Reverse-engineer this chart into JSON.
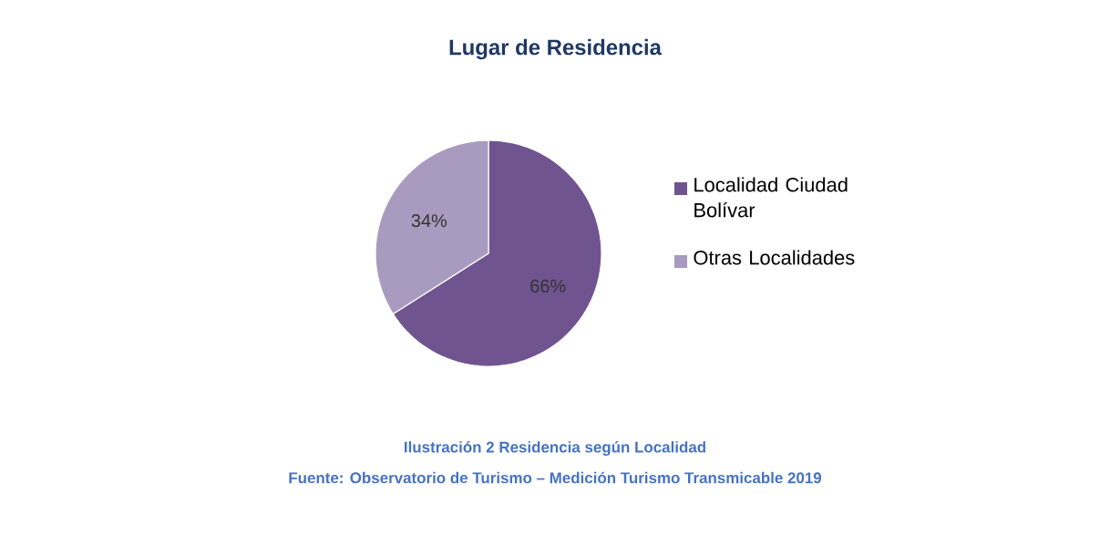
{
  "chart_data": {
    "type": "pie",
    "title": "Lugar de Residencia",
    "categories": [
      "Localidad Ciudad Bolívar",
      "Otras Localidades"
    ],
    "values": [
      66,
      34
    ],
    "colors": [
      "#6f5490",
      "#a99bbf"
    ],
    "value_labels": [
      "66%",
      "34%"
    ],
    "legend": "right",
    "annotations": [
      "Ilustración 2 Residencia según Localidad",
      "Fuente: Observatorio de Turismo – Medición Turismo Transmicable 2019"
    ]
  }
}
